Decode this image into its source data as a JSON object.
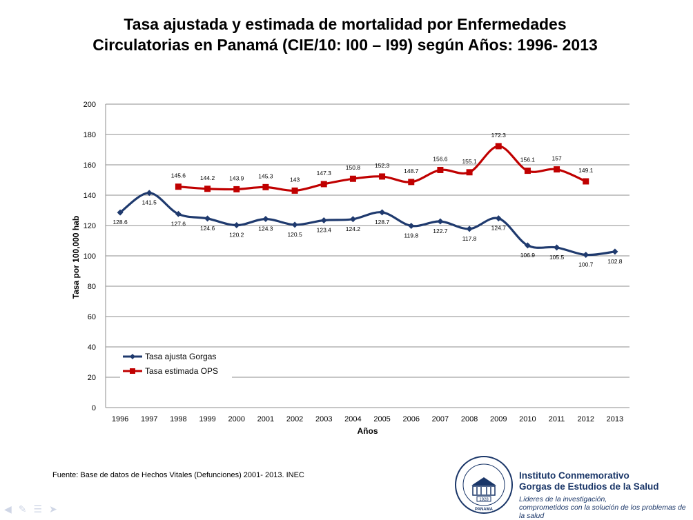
{
  "title_line1": "Tasa ajustada y estimada de mortalidad  por Enfermedades",
  "title_line2": "Circulatorias en Panamá (CIE/10: I00 – I99) según Años: 1996- 2013",
  "source": "Fuente: Base de datos de Hechos Vitales (Defunciones) 2001- 2013. INEC",
  "institution": {
    "name_line1": "Instituto Conmemorativo",
    "name_line2": "Gorgas de Estudios de la Salud",
    "tagline_line1": "Líderes de la investigación,",
    "tagline_line2": "comprometidos con la solución de los problemas de la salud",
    "seal_text": "INSTITUTO CONMEMORATIVO GORGAS DE ESTUDIOS DE LA SALUD",
    "seal_year": "1928",
    "seal_country": "PANAMA"
  },
  "nav_icons": [
    "arrow-left-icon",
    "pen-icon",
    "menu-icon",
    "arrow-right-icon"
  ],
  "chart_data": {
    "type": "line",
    "title": "",
    "xlabel": "Años",
    "ylabel": "Tasa por 100,000 hab",
    "ylim": [
      0,
      200
    ],
    "yticks": [
      0,
      20,
      40,
      60,
      80,
      100,
      120,
      140,
      160,
      180,
      200
    ],
    "grid": true,
    "legend": "bottom-left",
    "categories": [
      "1996",
      "1997",
      "1998",
      "1999",
      "2000",
      "2001",
      "2002",
      "2003",
      "2004",
      "2005",
      "2006",
      "2007",
      "2008",
      "2009",
      "2010",
      "2011",
      "2012",
      "2013"
    ],
    "series": [
      {
        "name": "Tasa ajusta Gorgas",
        "color": "#1f3a6e",
        "marker": "diamond",
        "values": [
          128.6,
          141.5,
          127.6,
          124.6,
          120.2,
          124.3,
          120.5,
          123.4,
          124.2,
          128.7,
          119.8,
          122.7,
          117.8,
          124.7,
          106.9,
          105.5,
          100.7,
          102.8
        ],
        "labels": [
          "128.6",
          "141.5",
          "127.6",
          "124.6",
          "120.2",
          "124.3",
          "120.5",
          "123.4",
          "124.2",
          "128.7",
          "119.8",
          "122.7",
          "117.8",
          "124.7",
          "106.9",
          "105.5",
          "100.7",
          "102.8"
        ]
      },
      {
        "name": "Tasa estimada OPS",
        "color": "#c00000",
        "marker": "square",
        "values": [
          null,
          null,
          145.6,
          144.2,
          143.9,
          145.3,
          143,
          147.3,
          150.8,
          152.3,
          148.7,
          156.6,
          155.1,
          172.3,
          156.1,
          157,
          149.1,
          null
        ],
        "labels": [
          null,
          null,
          "145.6",
          "144.2",
          "143.9",
          "145.3",
          "143",
          "147.3",
          "150.8",
          "152.3",
          "148.7",
          "156.6",
          "155.1",
          "172.3",
          "156.1",
          "157",
          "149.1",
          null
        ]
      }
    ]
  }
}
